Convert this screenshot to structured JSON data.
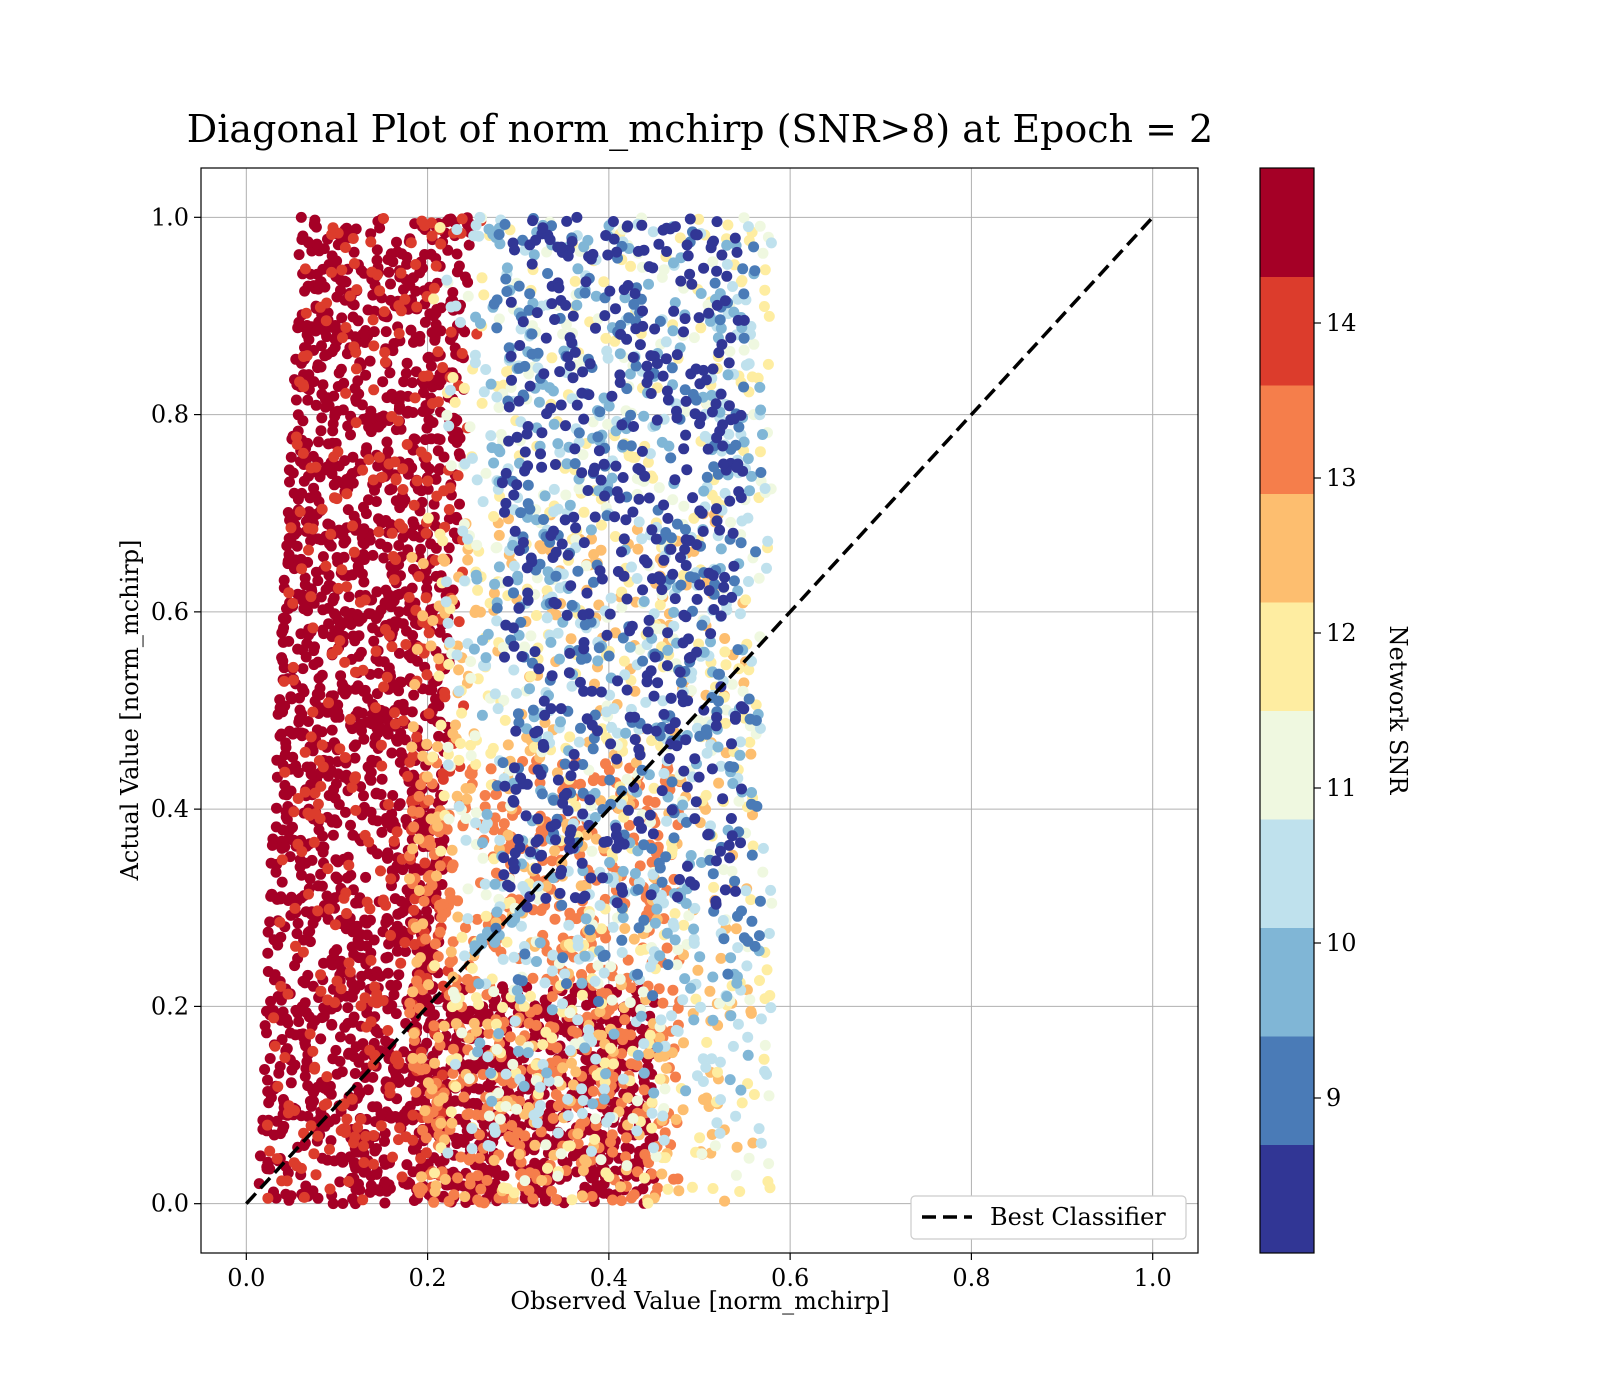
{
  "chart_data": {
    "type": "scatter",
    "title": "Diagonal Plot of norm_mchirp (SNR>8) at Epoch = 2",
    "xlabel": "Observed Value [norm_mchirp]",
    "ylabel": "Actual Value [norm_mchirp]",
    "xlim": [
      -0.05,
      1.05
    ],
    "ylim": [
      -0.05,
      1.05
    ],
    "xticks": [
      0.0,
      0.2,
      0.4,
      0.6,
      0.8,
      1.0
    ],
    "yticks": [
      0.0,
      0.2,
      0.4,
      0.6,
      0.8,
      1.0
    ],
    "xtick_labels": [
      "0.0",
      "0.2",
      "0.4",
      "0.6",
      "0.8",
      "1.0"
    ],
    "ytick_labels": [
      "0.0",
      "0.2",
      "0.4",
      "0.6",
      "0.8",
      "1.0"
    ],
    "grid": true,
    "legend": {
      "position": "lower-right",
      "entries": [
        "Best Classifier"
      ]
    },
    "reference_line": {
      "name": "Best Classifier",
      "style": "dashed",
      "color": "#000000",
      "points": [
        [
          0.0,
          0.0
        ],
        [
          1.0,
          1.0
        ]
      ]
    },
    "colorbar": {
      "label": "Network SNR",
      "range": [
        8,
        15
      ],
      "ticks": [
        9,
        10,
        11,
        12,
        13,
        14
      ],
      "tick_labels": [
        "9",
        "10",
        "11",
        "12",
        "13",
        "14"
      ],
      "bands": [
        {
          "from": 8.0,
          "to": 8.7,
          "color": "#313695"
        },
        {
          "from": 8.7,
          "to": 9.4,
          "color": "#4a7bb7"
        },
        {
          "from": 9.4,
          "to": 10.1,
          "color": "#80b6d6"
        },
        {
          "from": 10.1,
          "to": 10.8,
          "color": "#bfe1ed"
        },
        {
          "from": 10.8,
          "to": 11.5,
          "color": "#eff8e0"
        },
        {
          "from": 11.5,
          "to": 12.2,
          "color": "#feeda1"
        },
        {
          "from": 12.2,
          "to": 12.9,
          "color": "#fdbe6f"
        },
        {
          "from": 12.9,
          "to": 13.6,
          "color": "#f57e4b"
        },
        {
          "from": 13.6,
          "to": 14.3,
          "color": "#dc3c2c"
        },
        {
          "from": 14.3,
          "to": 15.0,
          "color": "#a50026"
        }
      ]
    },
    "point_groups": [
      {
        "snr": 14.6,
        "x_range": [
          0.01,
          0.2
        ],
        "y_range": [
          0.0,
          1.0
        ],
        "x_shift_per_y": 0.05,
        "count": 1700
      },
      {
        "snr": 14.6,
        "x_range": [
          0.18,
          0.45
        ],
        "y_range": [
          0.0,
          0.22
        ],
        "count": 700
      },
      {
        "snr": 14.0,
        "x_range": [
          0.02,
          0.22
        ],
        "y_range": [
          0.0,
          1.0
        ],
        "x_shift_per_y": 0.04,
        "count": 380
      },
      {
        "snr": 13.3,
        "x_range": [
          0.18,
          0.48
        ],
        "y_range": [
          0.0,
          0.45
        ],
        "count": 550
      },
      {
        "snr": 12.6,
        "x_range": [
          0.18,
          0.56
        ],
        "y_range": [
          0.0,
          0.7
        ],
        "count": 360
      },
      {
        "snr": 11.9,
        "x_range": [
          0.2,
          0.58
        ],
        "y_range": [
          0.0,
          1.0
        ],
        "count": 360
      },
      {
        "snr": 11.2,
        "x_range": [
          0.22,
          0.58
        ],
        "y_range": [
          0.02,
          1.0
        ],
        "count": 260
      },
      {
        "snr": 10.5,
        "x_range": [
          0.22,
          0.58
        ],
        "y_range": [
          0.05,
          1.0
        ],
        "count": 380
      },
      {
        "snr": 9.8,
        "x_range": [
          0.25,
          0.57
        ],
        "y_range": [
          0.1,
          1.0
        ],
        "count": 300
      },
      {
        "snr": 9.1,
        "x_range": [
          0.27,
          0.57
        ],
        "y_range": [
          0.2,
          1.0
        ],
        "count": 260
      },
      {
        "snr": 8.4,
        "x_range": [
          0.28,
          0.55
        ],
        "y_range": [
          0.3,
          1.0
        ],
        "count": 480
      }
    ]
  }
}
